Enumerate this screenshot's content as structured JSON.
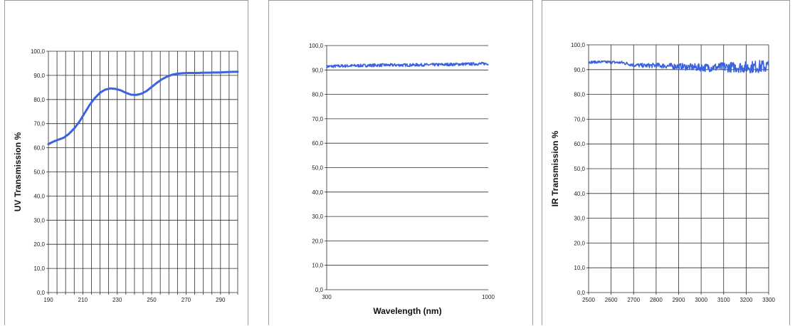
{
  "colors": {
    "series": "#3b63e0",
    "grid": "#2a2a2a",
    "border": "#9a9a9a"
  },
  "chart_data": [
    {
      "type": "line",
      "title": "",
      "xlabel": "",
      "ylabel": "UV Transmission %",
      "xlim": [
        190,
        300
      ],
      "ylim": [
        0,
        100
      ],
      "x_ticks": [
        "190",
        "210",
        "230",
        "250",
        "270",
        "290"
      ],
      "y_ticks": [
        "0,0",
        "10,0",
        "20,0",
        "30,0",
        "40,0",
        "50,0",
        "60,0",
        "70,0",
        "80,0",
        "90,0",
        "100,0"
      ],
      "grid": {
        "horizontal": true,
        "vertical": true,
        "vertical_step": 5
      },
      "series": [
        {
          "x": [
            190,
            193,
            196,
            199,
            202,
            205,
            208,
            211,
            214,
            217,
            220,
            223,
            226,
            229,
            232,
            235,
            238,
            241,
            244,
            247,
            250,
            253,
            256,
            259,
            262,
            265,
            268,
            271,
            274,
            277,
            280,
            283,
            286,
            289,
            292,
            295,
            298,
            300
          ],
          "y": [
            61.5,
            62.6,
            63.4,
            64.2,
            65.8,
            68.0,
            70.8,
            74.3,
            77.8,
            80.6,
            82.8,
            84.1,
            84.6,
            84.4,
            83.8,
            82.8,
            82.0,
            81.9,
            82.4,
            83.5,
            85.2,
            86.9,
            88.4,
            89.5,
            90.3,
            90.7,
            90.9,
            91.0,
            91.0,
            91.0,
            91.1,
            91.1,
            91.2,
            91.2,
            91.3,
            91.4,
            91.5,
            91.5
          ]
        }
      ]
    },
    {
      "type": "line",
      "title": "",
      "xlabel": "Wavelength (nm)",
      "ylabel": "",
      "xlim": [
        300,
        1000
      ],
      "ylim": [
        0,
        100
      ],
      "x_ticks": [
        "300",
        "1000"
      ],
      "y_ticks": [
        "0,0",
        "10,0",
        "20,0",
        "30,0",
        "40,0",
        "50,0",
        "60,0",
        "70,0",
        "80,0",
        "90,0",
        "100,0"
      ],
      "grid": {
        "horizontal": true,
        "vertical": false
      },
      "series": [
        {
          "x": [
            300,
            350,
            400,
            450,
            500,
            550,
            600,
            650,
            700,
            750,
            800,
            850,
            900,
            950,
            1000
          ],
          "y": [
            91.4,
            91.6,
            91.7,
            91.8,
            91.9,
            92.0,
            92.0,
            92.0,
            92.1,
            92.1,
            92.2,
            92.3,
            92.4,
            92.5,
            92.6
          ],
          "noise": 0.6
        }
      ]
    },
    {
      "type": "line",
      "title": "",
      "xlabel": "",
      "ylabel": "IR Transmission %",
      "xlim": [
        2500,
        3300
      ],
      "ylim": [
        0,
        100
      ],
      "x_ticks": [
        "2500",
        "2600",
        "2700",
        "2800",
        "2900",
        "3000",
        "3100",
        "3200",
        "3300"
      ],
      "y_ticks": [
        "0,0",
        "10,0",
        "20,0",
        "30,0",
        "40,0",
        "50,0",
        "60,0",
        "70,0",
        "80,0",
        "90,0",
        "100,0"
      ],
      "grid": {
        "horizontal": true,
        "vertical": true,
        "vertical_step": 100
      },
      "series": [
        {
          "x": [
            2500,
            2550,
            2600,
            2650,
            2700,
            2750,
            2800,
            2850,
            2900,
            2950,
            3000,
            3050,
            3100,
            3150,
            3200,
            3250,
            3300
          ],
          "y": [
            93.0,
            93.1,
            93.0,
            92.8,
            91.9,
            91.6,
            91.7,
            91.5,
            91.3,
            91.0,
            90.8,
            90.9,
            91.0,
            91.0,
            91.0,
            91.2,
            91.3
          ],
          "noise_start": 0.5,
          "noise_end": 2.8
        }
      ]
    }
  ]
}
